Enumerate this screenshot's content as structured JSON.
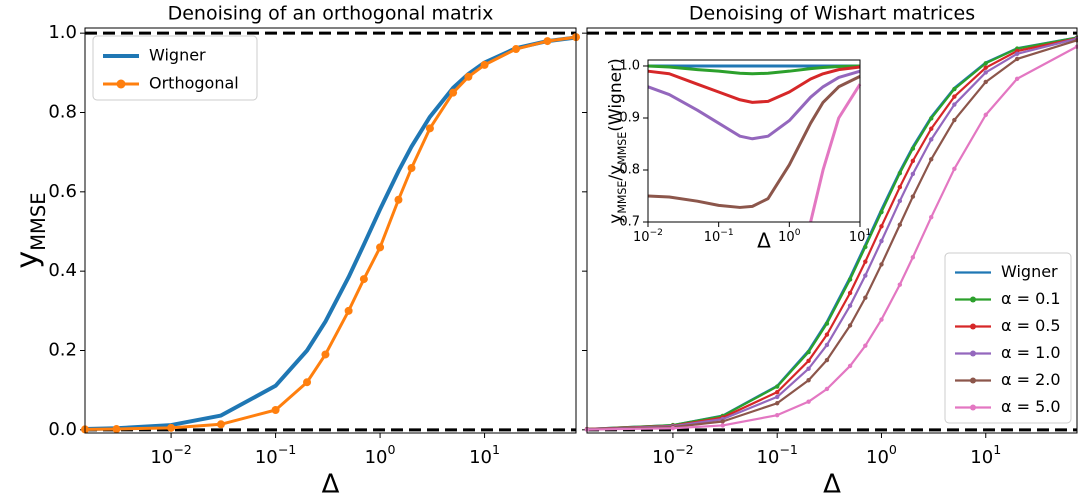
{
  "chart_data": [
    {
      "type": "line",
      "title": "Denoising of an orthogonal matrix",
      "xlabel": "Δ",
      "ylabel": [
        {
          "text": "y"
        },
        {
          "text": "MMSE",
          "sub": true
        }
      ],
      "xscale": "log",
      "xlim": [
        0.0015,
        75
      ],
      "ylim": [
        -0.008,
        1.013
      ],
      "xticks": [
        {
          "value": 0.01,
          "base": "10",
          "exponent": "−2"
        },
        {
          "value": 0.1,
          "base": "10",
          "exponent": "−1"
        },
        {
          "value": 1,
          "base": "10",
          "exponent": "0"
        },
        {
          "value": 10,
          "base": "10",
          "exponent": "1"
        }
      ],
      "yticks": [
        {
          "value": 0,
          "label": "0.0"
        },
        0.2,
        0.4,
        0.6,
        0.8,
        {
          "value": 1,
          "label": "1.0"
        }
      ],
      "ytick_labels": true,
      "hlines": [
        0,
        1
      ],
      "legend": "upper left",
      "x": [
        0.0015,
        0.003,
        0.01,
        0.03,
        0.1,
        0.2,
        0.3,
        0.5,
        0.7,
        1,
        1.5,
        2,
        3,
        5,
        7,
        10,
        20,
        40,
        75
      ],
      "series": [
        {
          "name": "Wigner",
          "color": "#1f77b4",
          "markers": false,
          "values": [
            0.002,
            0.004,
            0.012,
            0.036,
            0.111,
            0.2,
            0.273,
            0.385,
            0.467,
            0.556,
            0.652,
            0.714,
            0.789,
            0.862,
            0.897,
            0.926,
            0.962,
            0.98,
            0.989
          ]
        },
        {
          "name": "Orthogonal",
          "color": "#ff7f0e",
          "markers": true,
          "values": [
            0.001,
            0.002,
            0.005,
            0.014,
            0.05,
            0.12,
            0.19,
            0.3,
            0.38,
            0.46,
            0.58,
            0.66,
            0.76,
            0.85,
            0.89,
            0.92,
            0.96,
            0.98,
            0.99
          ]
        }
      ]
    },
    {
      "type": "line",
      "title": "Denoising of Wishart matrices",
      "xlabel": "Δ",
      "xscale": "log",
      "xlim": [
        0.0015,
        75
      ],
      "ylim": [
        -0.008,
        1.013
      ],
      "xticks": [
        {
          "value": 0.01,
          "base": "10",
          "exponent": "−2"
        },
        {
          "value": 0.1,
          "base": "10",
          "exponent": "−1"
        },
        {
          "value": 1,
          "base": "10",
          "exponent": "0"
        },
        {
          "value": 10,
          "base": "10",
          "exponent": "1"
        }
      ],
      "yticks": [
        0,
        0.2,
        0.4,
        0.6,
        0.8,
        1
      ],
      "ytick_labels": false,
      "hlines": [
        0,
        1
      ],
      "legend": "lower right",
      "x": [
        0.0015,
        0.01,
        0.03,
        0.1,
        0.2,
        0.3,
        0.5,
        0.7,
        1,
        1.5,
        2,
        3,
        5,
        10,
        20,
        75
      ],
      "series": [
        {
          "name": "Wigner",
          "color": "#1f77b4",
          "markers": false,
          "values": [
            0.002,
            0.012,
            0.036,
            0.111,
            0.2,
            0.273,
            0.385,
            0.467,
            0.556,
            0.652,
            0.714,
            0.789,
            0.862,
            0.926,
            0.962,
            0.989
          ]
        },
        {
          "name": "α = 0.1",
          "color": "#2ca02c",
          "markers": true,
          "values": [
            0.002,
            0.012,
            0.035,
            0.109,
            0.196,
            0.268,
            0.379,
            0.461,
            0.549,
            0.647,
            0.709,
            0.785,
            0.859,
            0.924,
            0.961,
            0.989
          ]
        },
        {
          "name": "α = 0.5",
          "color": "#d62728",
          "markers": true,
          "values": [
            0.002,
            0.01,
            0.031,
            0.095,
            0.174,
            0.24,
            0.345,
            0.424,
            0.513,
            0.612,
            0.678,
            0.759,
            0.84,
            0.913,
            0.955,
            0.987
          ]
        },
        {
          "name": "α = 1.0",
          "color": "#9467bd",
          "markers": true,
          "values": [
            0.0014,
            0.009,
            0.027,
            0.083,
            0.154,
            0.214,
            0.313,
            0.389,
            0.476,
            0.577,
            0.645,
            0.732,
            0.82,
            0.901,
            0.948,
            0.986
          ]
        },
        {
          "name": "α = 2.0",
          "color": "#8c564b",
          "markers": true,
          "values": [
            0.001,
            0.007,
            0.021,
            0.067,
            0.125,
            0.176,
            0.263,
            0.333,
            0.417,
            0.517,
            0.588,
            0.682,
            0.781,
            0.877,
            0.935,
            0.982
          ]
        },
        {
          "name": "α = 5.0",
          "color": "#e377c2",
          "markers": true,
          "values": [
            0.0006,
            0.004,
            0.011,
            0.037,
            0.071,
            0.103,
            0.161,
            0.212,
            0.278,
            0.366,
            0.435,
            0.536,
            0.658,
            0.794,
            0.885,
            0.966
          ]
        }
      ]
    },
    {
      "type": "line",
      "xlabel": "Δ",
      "ylabel": [
        {
          "text": "y"
        },
        {
          "text": "MMSE",
          "sub": true
        },
        {
          "text": "/y"
        },
        {
          "text": "MMSE",
          "sub": true
        },
        {
          "text": "(Wigner)"
        }
      ],
      "xscale": "log",
      "xlim": [
        0.01,
        10
      ],
      "ylim": [
        0.7,
        1.0115
      ],
      "xticks": [
        {
          "value": 0.01,
          "base": "10",
          "exponent": "−2"
        },
        {
          "value": 0.1,
          "base": "10",
          "exponent": "−1"
        },
        {
          "value": 1,
          "base": "10",
          "exponent": "0"
        },
        {
          "value": 10,
          "base": "10",
          "exponent": "1"
        }
      ],
      "yticks": [
        0.7,
        0.8,
        0.9,
        {
          "value": 1,
          "label": "1.0"
        }
      ],
      "ytick_labels": true,
      "x": [
        0.01,
        0.02,
        0.05,
        0.1,
        0.2,
        0.3,
        0.5,
        1,
        2,
        3,
        5,
        10
      ],
      "series": [
        {
          "color": "#1f77b4",
          "values": [
            1,
            1,
            1,
            1,
            1,
            1,
            1,
            1,
            1,
            1,
            1,
            1
          ]
        },
        {
          "color": "#2ca02c",
          "values": [
            1,
            0.998,
            0.993,
            0.99,
            0.986,
            0.985,
            0.986,
            0.99,
            0.995,
            0.997,
            0.999,
            1
          ]
        },
        {
          "color": "#d62728",
          "values": [
            0.99,
            0.985,
            0.965,
            0.95,
            0.935,
            0.93,
            0.932,
            0.95,
            0.975,
            0.985,
            0.993,
            0.998
          ]
        },
        {
          "color": "#9467bd",
          "values": [
            0.96,
            0.945,
            0.915,
            0.89,
            0.865,
            0.86,
            0.865,
            0.895,
            0.94,
            0.96,
            0.978,
            0.99
          ]
        },
        {
          "color": "#8c564b",
          "values": [
            0.75,
            0.748,
            0.74,
            0.732,
            0.728,
            0.73,
            0.745,
            0.81,
            0.89,
            0.93,
            0.96,
            0.98
          ]
        },
        {
          "color": "#e377c2",
          "values": [
            null,
            null,
            null,
            null,
            null,
            null,
            null,
            null,
            0.7,
            0.8,
            0.9,
            0.965
          ]
        }
      ]
    }
  ]
}
